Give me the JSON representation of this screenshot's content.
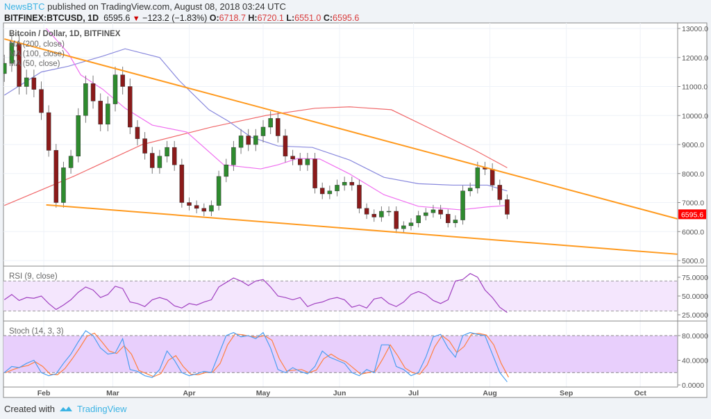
{
  "header": {
    "publisher": "NewsBTC",
    "published_text": "published on TradingView.com, August 08, 2018 03:24 UTC",
    "symbol": "BITFINEX:BTCUSD, 1D",
    "last": "6595.6",
    "change": "−123.2 (−1.83%)",
    "open_label": "O:",
    "open": "6718.7",
    "high_label": "H:",
    "high": "6720.1",
    "low_label": "L:",
    "low": "6551.0",
    "close_label": "C:",
    "close": "6595.6",
    "down_icon": "triangle-down-icon"
  },
  "legend": {
    "title": "Bitcoin / Dollar, 1D, BITFINEX",
    "ma200": "MA (200, close)",
    "ma100": "MA (100, close)",
    "ma50": "MA (50, close)"
  },
  "footer": {
    "created_with": "Created with",
    "brand": "TradingView",
    "logo_icon": "tradingview-logo-icon"
  },
  "colors": {
    "up": "#2e8b2e",
    "down": "#8b1a1a",
    "ma200": "#f0686a",
    "ma100": "#8888dd",
    "ma50": "#f06ef0",
    "trend": "#ff9a1f",
    "rsi": "#a040c0",
    "stoch_k": "#4a9ef0",
    "stoch_d": "#ff8040",
    "price_label": "#ff0000"
  },
  "chart_data": [
    {
      "type": "candlestick",
      "title": "Bitcoin / Dollar, 1D, BITFINEX",
      "ylim": [
        4800,
        13200
      ],
      "y_ticks": [
        "13000.0",
        "12000.0",
        "11000.0",
        "10000.0",
        "9000.0",
        "8000.0",
        "7000.0",
        "6000.0",
        "5000.0"
      ],
      "x_ticks": [
        {
          "label": "Feb",
          "date": "2018-02-01"
        },
        {
          "label": "Mar",
          "date": "2018-03-01"
        },
        {
          "label": "Apr",
          "date": "2018-04-01"
        },
        {
          "label": "May",
          "date": "2018-05-01"
        },
        {
          "label": "Jun",
          "date": "2018-06-01"
        },
        {
          "label": "Jul",
          "date": "2018-07-01"
        },
        {
          "label": "Aug",
          "date": "2018-08-01"
        },
        {
          "label": "Sep",
          "date": "2018-09-01"
        },
        {
          "label": "Oct",
          "date": "2018-10-01"
        }
      ],
      "last_price_label": "6595.6",
      "start_date": "2018-01-16",
      "step_days": 3,
      "closes": [
        11800,
        12500,
        11000,
        11300,
        10900,
        10100,
        8800,
        7000,
        8200,
        8600,
        10000,
        11100,
        10500,
        9700,
        10400,
        11400,
        11000,
        9600,
        9200,
        8700,
        8200,
        8600,
        8900,
        8300,
        7000,
        6900,
        6800,
        6700,
        6900,
        7900,
        8300,
        8900,
        9300,
        9000,
        9300,
        9600,
        9900,
        9300,
        8600,
        8500,
        8300,
        8500,
        7500,
        7300,
        7400,
        7600,
        7700,
        7600,
        6800,
        6600,
        6500,
        6700,
        6700,
        6100,
        6200,
        6300,
        6550,
        6650,
        6750,
        6600,
        6300,
        6400,
        7400,
        7500,
        8200,
        8150,
        7600,
        7100,
        6595.6
      ],
      "ma200": [
        [
          "2018-01-16",
          6900
        ],
        [
          "2018-02-13",
          7900
        ],
        [
          "2018-03-13",
          9000
        ],
        [
          "2018-04-10",
          9600
        ],
        [
          "2018-05-02",
          10000
        ],
        [
          "2018-05-22",
          10250
        ],
        [
          "2018-06-05",
          10300
        ],
        [
          "2018-06-22",
          10200
        ],
        [
          "2018-07-09",
          9500
        ],
        [
          "2018-07-26",
          8800
        ],
        [
          "2018-08-08",
          8200
        ]
      ],
      "ma100": [
        [
          "2018-01-16",
          10700
        ],
        [
          "2018-01-31",
          11500
        ],
        [
          "2018-02-11",
          11700
        ],
        [
          "2018-02-25",
          12050
        ],
        [
          "2018-03-06",
          12300
        ],
        [
          "2018-03-20",
          12000
        ],
        [
          "2018-03-28",
          11200
        ],
        [
          "2018-04-09",
          10200
        ],
        [
          "2018-04-17",
          9800
        ],
        [
          "2018-04-26",
          9260
        ],
        [
          "2018-05-07",
          8950
        ],
        [
          "2018-05-21",
          8900
        ],
        [
          "2018-06-05",
          8470
        ],
        [
          "2018-06-19",
          7870
        ],
        [
          "2018-07-03",
          7650
        ],
        [
          "2018-07-17",
          7600
        ],
        [
          "2018-07-31",
          7600
        ],
        [
          "2018-08-08",
          7400
        ]
      ],
      "ma50": [
        [
          "2018-02-02",
          13000
        ],
        [
          "2018-02-11",
          12140
        ],
        [
          "2018-02-16",
          11400
        ],
        [
          "2018-02-25",
          10900
        ],
        [
          "2018-03-06",
          10250
        ],
        [
          "2018-03-17",
          9670
        ],
        [
          "2018-03-31",
          9430
        ],
        [
          "2018-04-15",
          8300
        ],
        [
          "2018-04-30",
          8160
        ],
        [
          "2018-05-07",
          8300
        ],
        [
          "2018-05-15",
          8520
        ],
        [
          "2018-05-24",
          8500
        ],
        [
          "2018-06-05",
          7990
        ],
        [
          "2018-06-19",
          7270
        ],
        [
          "2018-07-03",
          6870
        ],
        [
          "2018-07-20",
          6750
        ],
        [
          "2018-07-31",
          6850
        ],
        [
          "2018-08-08",
          6900
        ]
      ],
      "trendlines": [
        {
          "name": "upper",
          "from": [
            "2018-01-16",
            12640
          ],
          "to": [
            "2018-10-16",
            6440
          ]
        },
        {
          "name": "lower",
          "from": [
            "2018-02-02",
            6920
          ],
          "to": [
            "2018-10-16",
            5220
          ]
        }
      ]
    },
    {
      "type": "line",
      "title": "RSI (9, close)",
      "ylim": [
        20,
        85
      ],
      "band": [
        30,
        70
      ],
      "y_ticks": [
        "75.0000",
        "50.0000",
        "25.0000"
      ],
      "start_date": "2018-01-16",
      "step_days": 3,
      "values": [
        45,
        52,
        44,
        48,
        47,
        50,
        40,
        32,
        38,
        45,
        55,
        62,
        58,
        48,
        52,
        63,
        60,
        42,
        40,
        36,
        45,
        48,
        45,
        37,
        34,
        40,
        38,
        42,
        45,
        62,
        68,
        74,
        70,
        64,
        70,
        72,
        62,
        50,
        48,
        45,
        48,
        36,
        40,
        42,
        46,
        48,
        45,
        35,
        38,
        34,
        46,
        48,
        40,
        36,
        42,
        52,
        56,
        52,
        44,
        40,
        45,
        70,
        72,
        80,
        75,
        58,
        48,
        35,
        28
      ]
    },
    {
      "type": "line",
      "title": "Stoch (14, 3, 3)",
      "ylim": [
        0,
        100
      ],
      "band": [
        20,
        80
      ],
      "y_ticks": [
        "80.0000",
        "40.0000",
        "0.0000"
      ],
      "start_date": "2018-01-16",
      "step_days": 3,
      "k": [
        20,
        30,
        28,
        35,
        40,
        20,
        15,
        18,
        35,
        50,
        70,
        88,
        80,
        60,
        50,
        52,
        75,
        25,
        22,
        15,
        12,
        25,
        55,
        40,
        20,
        15,
        18,
        22,
        20,
        50,
        80,
        85,
        78,
        80,
        75,
        85,
        60,
        25,
        20,
        28,
        22,
        18,
        30,
        55,
        45,
        40,
        35,
        20,
        15,
        25,
        20,
        65,
        65,
        30,
        25,
        15,
        20,
        45,
        78,
        82,
        60,
        45,
        80,
        85,
        82,
        80,
        50,
        20,
        5
      ]
    }
  ]
}
